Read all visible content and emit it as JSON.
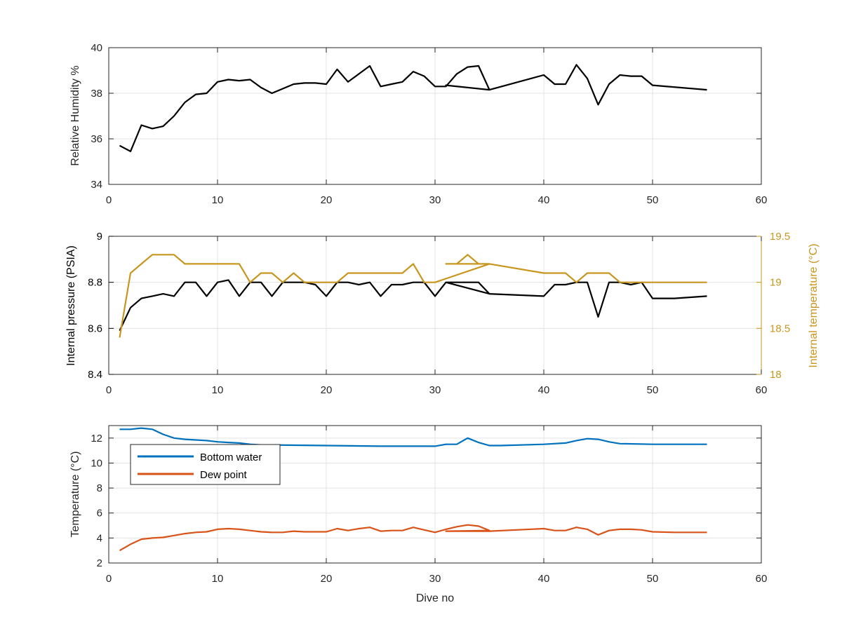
{
  "figure": {
    "xlabel": "Dive no"
  },
  "chart_data": [
    {
      "type": "line",
      "title": "",
      "xlabel": "",
      "ylabel": "Relative Humidity %",
      "xlim": [
        0,
        60
      ],
      "ylim": [
        34,
        40
      ],
      "xticks": [
        "0",
        "10",
        "20",
        "30",
        "40",
        "50",
        "60"
      ],
      "yticks": [
        "34",
        "36",
        "38",
        "40"
      ],
      "grid": true,
      "series": [
        {
          "color": "#000000",
          "points": [
            [
              1,
              35.7
            ],
            [
              2,
              35.45
            ],
            [
              3,
              36.6
            ],
            [
              4,
              36.45
            ],
            [
              5,
              36.55
            ],
            [
              6,
              37.0
            ],
            [
              7,
              37.6
            ],
            [
              8,
              37.95
            ],
            [
              9,
              38.0
            ],
            [
              10,
              38.5
            ],
            [
              11,
              38.6
            ],
            [
              12,
              38.55
            ],
            [
              13,
              38.6
            ],
            [
              14,
              38.25
            ],
            [
              15,
              38.0
            ],
            [
              16,
              38.2
            ],
            [
              17,
              38.4
            ],
            [
              18,
              38.45
            ],
            [
              19,
              38.45
            ],
            [
              20,
              38.4
            ],
            [
              21,
              39.05
            ],
            [
              22,
              38.5
            ],
            [
              23,
              38.85
            ],
            [
              24,
              39.2
            ],
            [
              25,
              38.3
            ],
            [
              26,
              38.4
            ],
            [
              27,
              38.5
            ],
            [
              28,
              38.95
            ],
            [
              29,
              38.75
            ],
            [
              30,
              38.3
            ],
            [
              31,
              38.3
            ],
            [
              32,
              38.85
            ],
            [
              33,
              39.15
            ],
            [
              34,
              39.2
            ],
            [
              35,
              38.15
            ],
            [
              31,
              38.35
            ],
            [
              35,
              38.15
            ],
            [
              40,
              38.8
            ],
            [
              41,
              38.4
            ],
            [
              42,
              38.4
            ],
            [
              43,
              39.25
            ],
            [
              44,
              38.65
            ],
            [
              45,
              37.5
            ],
            [
              46,
              38.4
            ],
            [
              47,
              38.8
            ],
            [
              48,
              38.75
            ],
            [
              49,
              38.75
            ],
            [
              50,
              38.35
            ],
            [
              55,
              38.15
            ]
          ]
        }
      ]
    },
    {
      "type": "line",
      "title": "",
      "xlabel": "",
      "ylabel": "Internal pressure (PSIA)",
      "y2label": "Internal temperature (°C)",
      "xlim": [
        0,
        60
      ],
      "ylim": [
        8.4,
        9
      ],
      "y2lim": [
        18,
        19.5
      ],
      "xticks": [
        "0",
        "10",
        "20",
        "30",
        "40",
        "50",
        "60"
      ],
      "yticks": [
        "8.4",
        "8.6",
        "8.8",
        "9"
      ],
      "y2ticks": [
        "18",
        "18.5",
        "19",
        "19.5"
      ],
      "grid": true,
      "series": [
        {
          "axis": "left",
          "color": "#000000",
          "points": [
            [
              1,
              8.59
            ],
            [
              2,
              8.69
            ],
            [
              3,
              8.73
            ],
            [
              4,
              8.74
            ],
            [
              5,
              8.75
            ],
            [
              6,
              8.74
            ],
            [
              7,
              8.8
            ],
            [
              8,
              8.8
            ],
            [
              9,
              8.74
            ],
            [
              10,
              8.8
            ],
            [
              11,
              8.81
            ],
            [
              12,
              8.74
            ],
            [
              13,
              8.8
            ],
            [
              14,
              8.8
            ],
            [
              15,
              8.74
            ],
            [
              16,
              8.8
            ],
            [
              17,
              8.8
            ],
            [
              18,
              8.8
            ],
            [
              19,
              8.79
            ],
            [
              20,
              8.74
            ],
            [
              21,
              8.8
            ],
            [
              22,
              8.8
            ],
            [
              23,
              8.79
            ],
            [
              24,
              8.8
            ],
            [
              25,
              8.74
            ],
            [
              26,
              8.79
            ],
            [
              27,
              8.79
            ],
            [
              28,
              8.8
            ],
            [
              29,
              8.8
            ],
            [
              30,
              8.74
            ],
            [
              31,
              8.8
            ],
            [
              34,
              8.8
            ],
            [
              35,
              8.75
            ],
            [
              31,
              8.8
            ],
            [
              35,
              8.75
            ],
            [
              40,
              8.74
            ],
            [
              41,
              8.79
            ],
            [
              42,
              8.79
            ],
            [
              43,
              8.8
            ],
            [
              44,
              8.8
            ],
            [
              45,
              8.65
            ],
            [
              46,
              8.8
            ],
            [
              47,
              8.8
            ],
            [
              48,
              8.79
            ],
            [
              49,
              8.8
            ],
            [
              50,
              8.73
            ],
            [
              52,
              8.73
            ],
            [
              55,
              8.74
            ]
          ]
        },
        {
          "axis": "right",
          "color": "#C8961E",
          "points": [
            [
              1,
              18.4
            ],
            [
              2,
              19.1
            ],
            [
              3,
              19.2
            ],
            [
              4,
              19.3
            ],
            [
              5,
              19.3
            ],
            [
              6,
              19.3
            ],
            [
              7,
              19.2
            ],
            [
              8,
              19.2
            ],
            [
              9,
              19.2
            ],
            [
              10,
              19.2
            ],
            [
              11,
              19.2
            ],
            [
              12,
              19.2
            ],
            [
              13,
              19.0
            ],
            [
              14,
              19.1
            ],
            [
              15,
              19.1
            ],
            [
              16,
              19.0
            ],
            [
              17,
              19.1
            ],
            [
              18,
              19.0
            ],
            [
              19,
              19.0
            ],
            [
              20,
              19.0
            ],
            [
              21,
              19.0
            ],
            [
              22,
              19.1
            ],
            [
              23,
              19.1
            ],
            [
              24,
              19.1
            ],
            [
              25,
              19.1
            ],
            [
              26,
              19.1
            ],
            [
              27,
              19.1
            ],
            [
              28,
              19.2
            ],
            [
              29,
              19.0
            ],
            [
              30,
              19.0
            ],
            [
              35,
              19.2
            ],
            [
              31,
              19.2
            ],
            [
              32,
              19.2
            ],
            [
              33,
              19.3
            ],
            [
              34,
              19.2
            ],
            [
              35,
              19.2
            ],
            [
              40,
              19.1
            ],
            [
              41,
              19.1
            ],
            [
              42,
              19.1
            ],
            [
              43,
              19.0
            ],
            [
              44,
              19.1
            ],
            [
              45,
              19.1
            ],
            [
              46,
              19.1
            ],
            [
              47,
              19.0
            ],
            [
              48,
              19.0
            ],
            [
              49,
              19.0
            ],
            [
              50,
              19.0
            ],
            [
              55,
              19.0
            ]
          ]
        }
      ]
    },
    {
      "type": "line",
      "title": "",
      "xlabel": "Dive no",
      "ylabel": "Temperature (°C)",
      "xlim": [
        0,
        60
      ],
      "ylim": [
        2,
        13
      ],
      "xticks": [
        "0",
        "10",
        "20",
        "30",
        "40",
        "50",
        "60"
      ],
      "yticks": [
        "2",
        "4",
        "6",
        "8",
        "10",
        "12"
      ],
      "grid": true,
      "legend": "top-left",
      "series": [
        {
          "name": "Bottom water",
          "color": "#0072BD",
          "points": [
            [
              1,
              12.7
            ],
            [
              2,
              12.7
            ],
            [
              3,
              12.8
            ],
            [
              4,
              12.7
            ],
            [
              5,
              12.3
            ],
            [
              6,
              12.0
            ],
            [
              7,
              11.9
            ],
            [
              8,
              11.85
            ],
            [
              9,
              11.8
            ],
            [
              10,
              11.7
            ],
            [
              11,
              11.65
            ],
            [
              12,
              11.6
            ],
            [
              13,
              11.5
            ],
            [
              14,
              11.45
            ],
            [
              15,
              11.45
            ],
            [
              20,
              11.4
            ],
            [
              25,
              11.35
            ],
            [
              30,
              11.35
            ],
            [
              31,
              11.5
            ],
            [
              32,
              11.5
            ],
            [
              33,
              12.0
            ],
            [
              34,
              11.65
            ],
            [
              35,
              11.4
            ],
            [
              36,
              11.4
            ],
            [
              40,
              11.5
            ],
            [
              42,
              11.6
            ],
            [
              43,
              11.8
            ],
            [
              44,
              11.95
            ],
            [
              45,
              11.9
            ],
            [
              46,
              11.7
            ],
            [
              47,
              11.55
            ],
            [
              50,
              11.5
            ],
            [
              55,
              11.5
            ]
          ]
        },
        {
          "name": "Dew point",
          "color": "#D95319",
          "points": [
            [
              1,
              3.0
            ],
            [
              2,
              3.5
            ],
            [
              3,
              3.9
            ],
            [
              4,
              4.0
            ],
            [
              5,
              4.05
            ],
            [
              6,
              4.2
            ],
            [
              7,
              4.35
            ],
            [
              8,
              4.45
            ],
            [
              9,
              4.5
            ],
            [
              10,
              4.7
            ],
            [
              11,
              4.75
            ],
            [
              12,
              4.7
            ],
            [
              13,
              4.6
            ],
            [
              14,
              4.5
            ],
            [
              15,
              4.45
            ],
            [
              16,
              4.45
            ],
            [
              17,
              4.55
            ],
            [
              18,
              4.5
            ],
            [
              19,
              4.5
            ],
            [
              20,
              4.5
            ],
            [
              21,
              4.75
            ],
            [
              22,
              4.6
            ],
            [
              23,
              4.75
            ],
            [
              24,
              4.85
            ],
            [
              25,
              4.55
            ],
            [
              26,
              4.6
            ],
            [
              27,
              4.6
            ],
            [
              28,
              4.85
            ],
            [
              29,
              4.65
            ],
            [
              30,
              4.45
            ],
            [
              31,
              4.7
            ],
            [
              32,
              4.9
            ],
            [
              33,
              5.05
            ],
            [
              34,
              4.95
            ],
            [
              35,
              4.6
            ],
            [
              31,
              4.55
            ],
            [
              35,
              4.55
            ],
            [
              40,
              4.75
            ],
            [
              41,
              4.6
            ],
            [
              42,
              4.6
            ],
            [
              43,
              4.85
            ],
            [
              44,
              4.7
            ],
            [
              45,
              4.25
            ],
            [
              46,
              4.6
            ],
            [
              47,
              4.7
            ],
            [
              48,
              4.7
            ],
            [
              49,
              4.65
            ],
            [
              50,
              4.5
            ],
            [
              52,
              4.45
            ],
            [
              55,
              4.45
            ]
          ]
        }
      ]
    }
  ]
}
